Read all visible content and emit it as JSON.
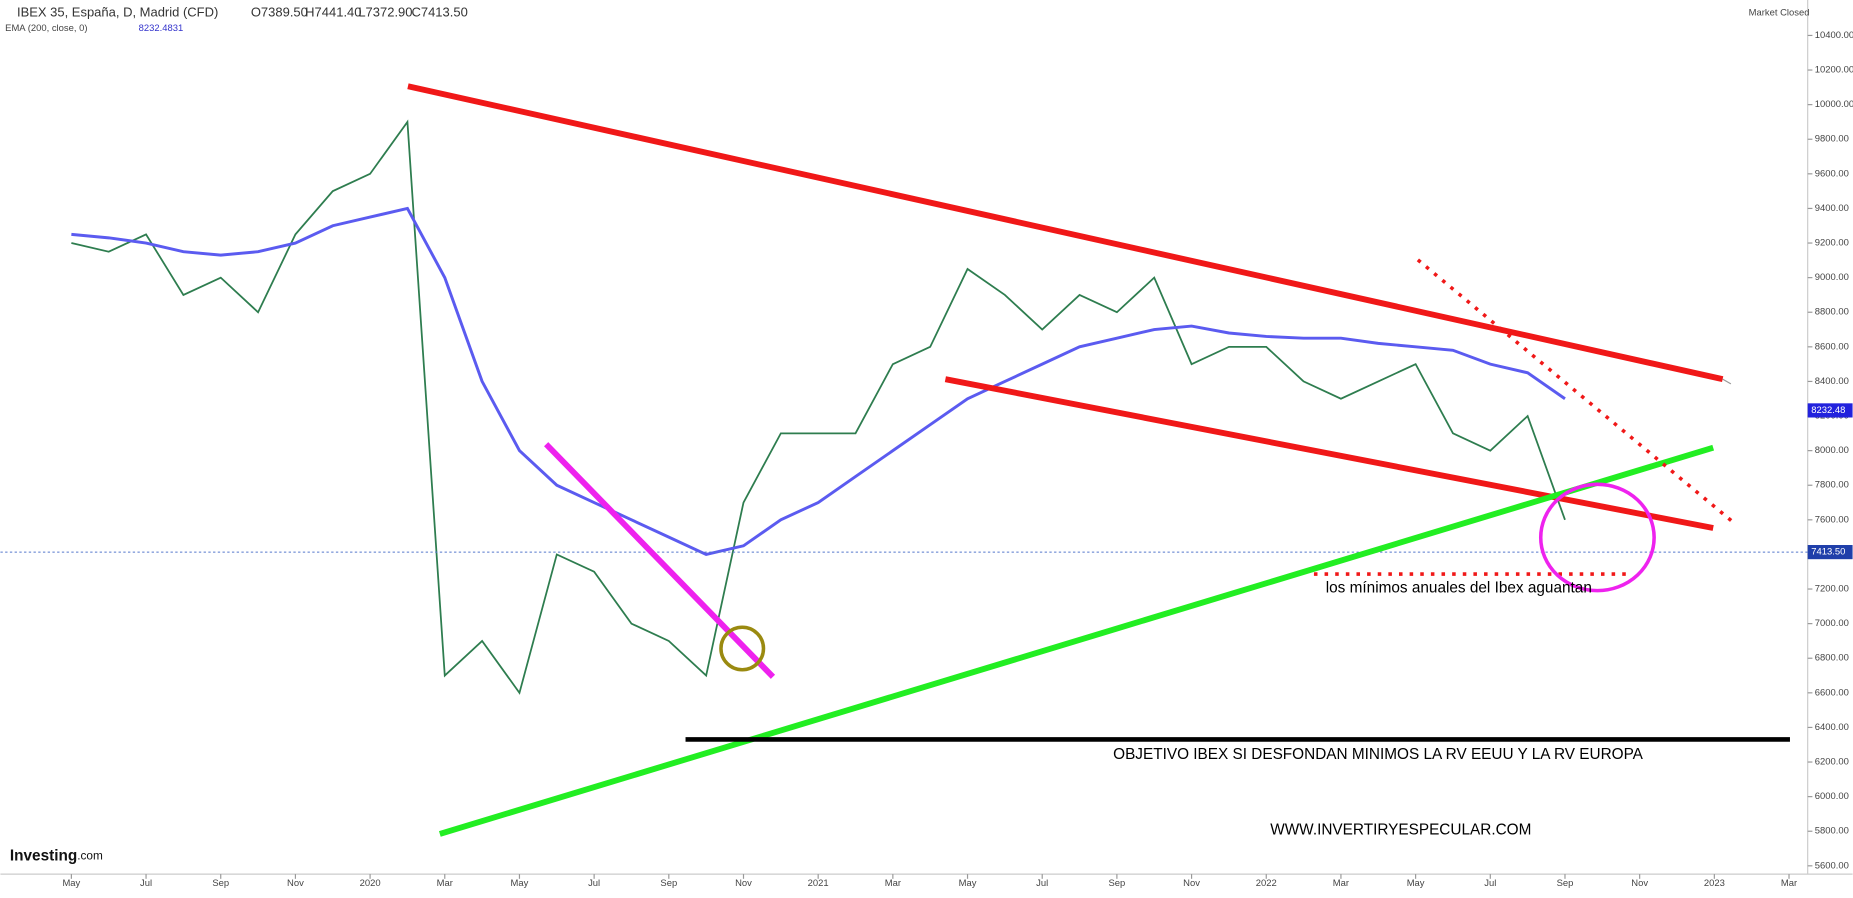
{
  "header": {
    "symbol": "IBEX 35, España, D, Madrid (CFD)",
    "open": "O7389.50",
    "high": "H7441.40",
    "low": "L7372.90",
    "close": "C7413.50",
    "indicator": "EMA (200, close, 0)",
    "indicator_value": "8232.4831",
    "status": "Market Closed",
    "brand": "Investing",
    "brand_suffix": ".com"
  },
  "chart_data": {
    "type": "line",
    "x": [
      0,
      1,
      2,
      3,
      4,
      5,
      6,
      7,
      8,
      9,
      10,
      11,
      12,
      13,
      14,
      15,
      16,
      17,
      18,
      19,
      20,
      21,
      22,
      23,
      24,
      25,
      26,
      27,
      28,
      29,
      30,
      31,
      32,
      33,
      34,
      35,
      36,
      37,
      38,
      39,
      40
    ],
    "series": [
      {
        "name": "IBEX 35",
        "color": "#2e7d4f",
        "values": [
          9200,
          9150,
          9250,
          8900,
          9000,
          8800,
          9250,
          9500,
          9600,
          9900,
          6700,
          6900,
          6600,
          7400,
          7300,
          7000,
          6900,
          6700,
          7700,
          8100,
          8100,
          8100,
          8500,
          8600,
          9050,
          8900,
          8700,
          8900,
          8800,
          9000,
          8500,
          8600,
          8600,
          8400,
          8300,
          8400,
          8500,
          8100,
          8000,
          8200,
          7600
        ]
      },
      {
        "name": "EMA (200, close, 0)",
        "color": "#5b5bf0",
        "values": [
          9250,
          9230,
          9200,
          9150,
          9130,
          9150,
          9200,
          9300,
          9350,
          9400,
          9000,
          8400,
          8000,
          7800,
          7700,
          7600,
          7500,
          7400,
          7450,
          7600,
          7700,
          7850,
          8000,
          8150,
          8300,
          8400,
          8500,
          8600,
          8650,
          8700,
          8720,
          8680,
          8660,
          8650,
          8650,
          8620,
          8600,
          8580,
          8500,
          8450,
          8300
        ]
      }
    ],
    "last_price": {
      "value": 7413.5,
      "label": "7413.50"
    },
    "ema_last": {
      "value": 8232.48,
      "label": "8232.48"
    },
    "xlim": [
      -1.9,
      46.5
    ],
    "xticks": [
      {
        "value": 0,
        "label": "May"
      },
      {
        "value": 2,
        "label": "Jul"
      },
      {
        "value": 4,
        "label": "Sep"
      },
      {
        "value": 6,
        "label": "Nov"
      },
      {
        "value": 8,
        "label": "2020"
      },
      {
        "value": 10,
        "label": "Mar"
      },
      {
        "value": 12,
        "label": "May"
      },
      {
        "value": 14,
        "label": "Jul"
      },
      {
        "value": 16,
        "label": "Sep"
      },
      {
        "value": 18,
        "label": "Nov"
      },
      {
        "value": 20,
        "label": "2021"
      },
      {
        "value": 22,
        "label": "Mar"
      },
      {
        "value": 24,
        "label": "May"
      },
      {
        "value": 26,
        "label": "Jul"
      },
      {
        "value": 28,
        "label": "Sep"
      },
      {
        "value": 30,
        "label": "Nov"
      },
      {
        "value": 32,
        "label": "2022"
      },
      {
        "value": 34,
        "label": "Mar"
      },
      {
        "value": 36,
        "label": "May"
      },
      {
        "value": 38,
        "label": "Jul"
      },
      {
        "value": 40,
        "label": "Sep"
      },
      {
        "value": 42,
        "label": "Nov"
      },
      {
        "value": 44,
        "label": "2023"
      },
      {
        "value": 46,
        "label": "Mar"
      }
    ],
    "ylim": [
      5600,
      10400
    ],
    "yticks": [
      {
        "value": 5600,
        "label": "5600.00"
      },
      {
        "value": 5800,
        "label": "5800.00"
      },
      {
        "value": 6000,
        "label": "6000.00"
      },
      {
        "value": 6200,
        "label": "6200.00"
      },
      {
        "value": 6400,
        "label": "6400.00"
      },
      {
        "value": 6600,
        "label": "6600.00"
      },
      {
        "value": 6800,
        "label": "6800.00"
      },
      {
        "value": 7000,
        "label": "7000.00"
      },
      {
        "value": 7200,
        "label": "7200.00"
      },
      {
        "value": 7400,
        "label": "7400.00"
      },
      {
        "value": 7600,
        "label": "7600.00"
      },
      {
        "value": 7800,
        "label": "7800.00"
      },
      {
        "value": 8000,
        "label": "8000.00"
      },
      {
        "value": 8200,
        "label": "8200.00"
      },
      {
        "value": 8400,
        "label": "8400.00"
      },
      {
        "value": 8600,
        "label": "8600.00"
      },
      {
        "value": 8800,
        "label": "8800.00"
      },
      {
        "value": 9000,
        "label": "9000.00"
      },
      {
        "value": 9200,
        "label": "9200.00"
      },
      {
        "value": 9400,
        "label": "9400.00"
      },
      {
        "value": 9600,
        "label": "9600.00"
      },
      {
        "value": 9800,
        "label": "9800.00"
      },
      {
        "value": 10000,
        "label": "10000.00"
      },
      {
        "value": 10200,
        "label": "10200.00"
      },
      {
        "value": 10400,
        "label": "10400.00"
      }
    ],
    "annotations": [
      "los mínimos anuales del Ibex aguantan",
      "OBJETIVO IBEX SI DESFONDAN MINIMOS  LA RV EEUU Y LA RV EUROPA",
      "WWW.INVERTIRYESPECULAR.COM"
    ]
  }
}
